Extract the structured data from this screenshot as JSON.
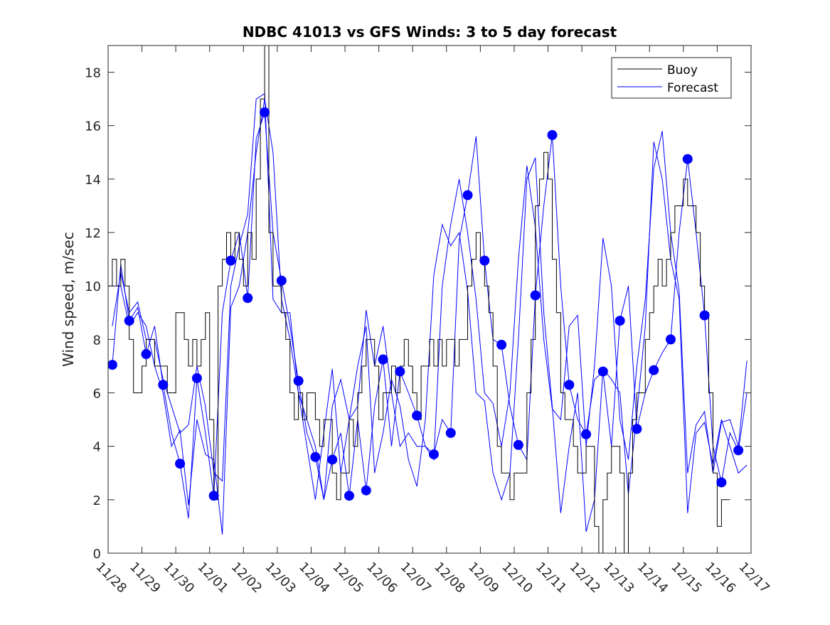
{
  "chart_data": {
    "type": "line",
    "title": "NDBC 41013 vs GFS Winds: 3 to 5 day forecast",
    "xlabel": "",
    "ylabel": "Wind speed, m/sec",
    "xlim": [
      0,
      19
    ],
    "ylim": [
      0,
      19
    ],
    "x_unit": "days since 11/28",
    "xticks": [
      "11/28",
      "11/29",
      "11/30",
      "12/01",
      "12/02",
      "12/03",
      "12/04",
      "12/05",
      "12/06",
      "12/07",
      "12/08",
      "12/09",
      "12/10",
      "12/11",
      "12/12",
      "12/13",
      "12/14",
      "12/15",
      "12/16",
      "12/17"
    ],
    "yticks": [
      0,
      2,
      4,
      6,
      8,
      10,
      12,
      14,
      16,
      18
    ],
    "grid": false,
    "legend": {
      "placement": "top-right",
      "entries": [
        "Buoy",
        "Forecast"
      ]
    },
    "colors": {
      "buoy": "#000000",
      "forecast": "#0000ff"
    },
    "buoy": {
      "name": "Buoy",
      "start": 0,
      "step": 0.125,
      "values": [
        10,
        11,
        10,
        11,
        10,
        8,
        6,
        6,
        7,
        8,
        8,
        7,
        7,
        7,
        6,
        6,
        9,
        9,
        8,
        7,
        8,
        7,
        8,
        9,
        5,
        2,
        10,
        11,
        12,
        11,
        12,
        11,
        10,
        12,
        11,
        14,
        17,
        19,
        12,
        10,
        10,
        9,
        8,
        6,
        5,
        6,
        5,
        6,
        6,
        5,
        4,
        5,
        5,
        3,
        2,
        3,
        3,
        5,
        4,
        6,
        7,
        8,
        8,
        7,
        5,
        6,
        6,
        7,
        6,
        7,
        8,
        7,
        6,
        5,
        7,
        7,
        8,
        7,
        8,
        7,
        8,
        8,
        7,
        8,
        8,
        10,
        11,
        12,
        11,
        10,
        9,
        7,
        4,
        3,
        3,
        2,
        3,
        3,
        3,
        6,
        8,
        13,
        14,
        15,
        14,
        11,
        9,
        6,
        5,
        5,
        4,
        3,
        3,
        4,
        4,
        1,
        0,
        2,
        3,
        4,
        4,
        3,
        0,
        3,
        5,
        6,
        6,
        8,
        9,
        10,
        11,
        10,
        11,
        12,
        13,
        13,
        14,
        13,
        13,
        12,
        10,
        9,
        6,
        3,
        1,
        2,
        2
      ]
    },
    "forecasts": [
      {
        "name": "Forecast",
        "start": 0.125,
        "step": 0.25,
        "values": [
          7.05,
          10.8,
          8.7,
          9.2,
          7.45,
          8.5,
          6.3,
          4.5,
          3.35,
          1.3,
          6.55,
          4.5,
          2.15,
          9.0,
          10.95,
          12.0,
          9.55,
          15.5,
          16.5,
          12.0,
          10.2,
          8.5,
          6.45,
          4.5,
          3.6,
          2.0,
          3.5,
          4.5,
          2.15,
          5.0,
          2.35,
          5.5,
          7.25,
          4.0,
          6.8,
          6.0,
          5.15,
          4.0,
          3.7,
          5.0,
          4.5,
          11.7,
          13.4,
          15.6,
          10.95,
          8.0,
          7.8,
          5.5,
          4.05,
          3.5,
          9.65,
          13.0,
          15.65,
          10.0,
          6.3,
          5.0,
          4.45,
          6.5,
          6.8,
          4.0,
          8.7,
          10.0,
          4.65,
          6.0,
          6.85,
          7.5,
          8.0,
          12.0,
          14.75,
          12.0,
          8.9,
          4.0,
          2.65,
          4.5,
          3.85,
          6.0
        ]
      },
      {
        "name": "Forecast",
        "start": 0.125,
        "step": 0.25,
        "values": [
          8.5,
          10.5,
          9.0,
          9.4,
          8.0,
          8.0,
          6.5,
          5.5,
          4.5,
          4.8,
          7.0,
          5.5,
          3.0,
          2.7,
          10.0,
          11.5,
          12.7,
          17.0,
          17.2,
          9.5,
          9.0,
          9.0,
          6.0,
          5.0,
          4.0,
          2.0,
          5.5,
          6.5,
          5.0,
          5.5,
          9.1,
          7.0,
          8.5,
          6.0,
          4.0,
          4.5,
          4.0,
          4.0,
          3.5,
          10.0,
          12.3,
          14.0,
          12.0,
          9.5,
          6.0,
          5.6,
          4.0,
          6.0,
          11.0,
          14.5,
          12.2,
          8.0,
          5.4,
          5.0,
          8.5,
          8.9,
          4.0,
          7.0,
          11.8,
          10.0,
          5.0,
          3.5,
          7.0,
          9.5,
          14.4,
          15.8,
          12.0,
          9.8,
          3.0,
          4.8,
          5.3,
          3.0,
          4.9,
          5.0,
          4.0,
          7.2
        ]
      },
      {
        "name": "Forecast",
        "start": 0.125,
        "step": 0.25,
        "values": [
          10.0,
          10.0,
          8.5,
          9.0,
          8.5,
          7.0,
          6.0,
          4.0,
          4.6,
          1.8,
          5.0,
          3.7,
          3.5,
          0.7,
          9.2,
          10.0,
          12.0,
          15.0,
          17.0,
          15.0,
          9.5,
          8.0,
          6.0,
          4.0,
          2.0,
          4.5,
          6.9,
          3.0,
          5.0,
          7.0,
          8.5,
          3.0,
          4.5,
          6.5,
          5.5,
          3.5,
          2.5,
          5.0,
          10.4,
          12.3,
          11.5,
          12.0,
          9.8,
          6.0,
          5.7,
          3.0,
          2.0,
          3.0,
          8.0,
          14.0,
          14.8,
          9.0,
          5.5,
          1.5,
          4.0,
          6.0,
          0.8,
          2.0,
          6.9,
          6.5,
          6.0,
          2.2,
          5.2,
          8.5,
          15.4,
          14.0,
          11.0,
          9.5,
          1.5,
          4.5,
          4.9,
          3.3,
          5.0,
          4.0,
          3.0,
          3.3
        ]
      }
    ],
    "markers": {
      "name": "Forecast markers",
      "start": 0.125,
      "step": 0.5,
      "values": [
        7.05,
        8.7,
        7.45,
        6.3,
        3.35,
        6.55,
        2.15,
        10.95,
        9.55,
        16.5,
        10.2,
        6.45,
        3.6,
        3.5,
        2.15,
        2.35,
        7.25,
        6.8,
        5.15,
        3.7,
        4.5,
        13.4,
        10.95,
        7.8,
        4.05,
        9.65,
        15.65,
        6.3,
        4.45,
        6.8,
        8.7,
        4.65,
        6.85,
        8.0,
        14.75,
        8.9,
        2.65,
        3.85
      ]
    }
  }
}
